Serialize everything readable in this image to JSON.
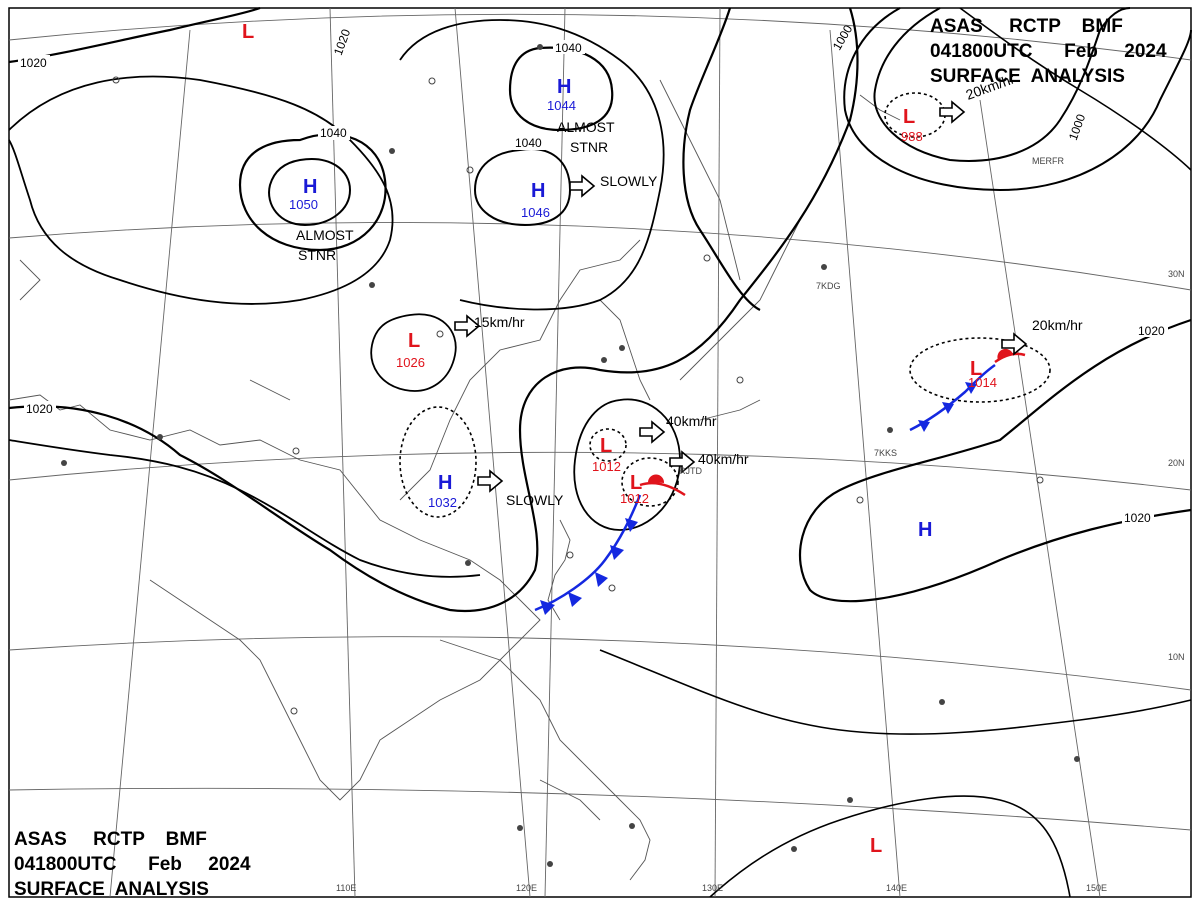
{
  "header": {
    "line1": "ASAS     RCTP    BMF",
    "line2": "041800UTC      Feb     2024",
    "line3": "SURFACE  ANALYSIS"
  },
  "colors": {
    "high": "#1a1ad6",
    "low": "#e0141c",
    "cold_front": "#1428e0",
    "warm_front": "#e0141c",
    "isobar": "#000000",
    "coast": "#555555"
  },
  "isobar_labels": [
    "1020",
    "1020",
    "1020",
    "1020",
    "1000",
    "1000",
    "1040",
    "1040",
    "1040",
    "1020"
  ],
  "highs": [
    {
      "letter": "H",
      "pressure": "1050"
    },
    {
      "letter": "H",
      "pressure": "1044"
    },
    {
      "letter": "H",
      "pressure": "1046"
    },
    {
      "letter": "H",
      "pressure": "1032"
    },
    {
      "letter": "H",
      "pressure": ""
    }
  ],
  "lows": [
    {
      "letter": "L",
      "pressure": ""
    },
    {
      "letter": "L",
      "pressure": "988"
    },
    {
      "letter": "L",
      "pressure": "1026"
    },
    {
      "letter": "L",
      "pressure": "1012"
    },
    {
      "letter": "L",
      "pressure": "1012"
    },
    {
      "letter": "L",
      "pressure": "1014"
    },
    {
      "letter": "L",
      "pressure": ""
    }
  ],
  "motion_labels": [
    "SLOWLY",
    "15km/hr",
    "SLOWLY",
    "40km/hr",
    "40km/hr",
    "20km/hr",
    "20km/hr"
  ],
  "status_labels": [
    "ALMOST",
    "STNR",
    "ALMOST",
    "STNR"
  ],
  "longitude_labels": [
    "110E",
    "120E",
    "130E",
    "140E",
    "150E"
  ],
  "latitude_labels": [
    "30N",
    "20N",
    "10N"
  ],
  "station_labels": [
    "RJTD",
    "MERFR",
    "7KDG",
    "7KKS"
  ]
}
